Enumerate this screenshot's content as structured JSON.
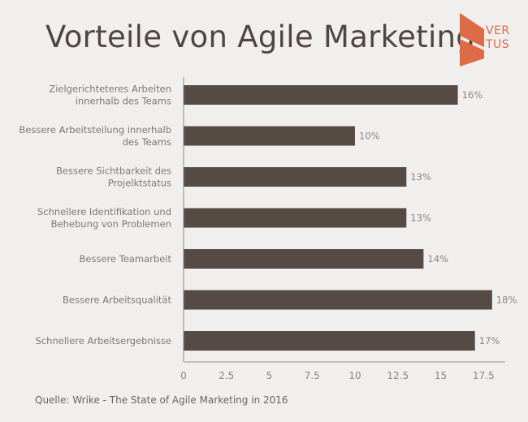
{
  "brand": {
    "logo_icon": "vertus-logo-icon",
    "logo_line1": "VER",
    "logo_line2": "TUS",
    "accent_color": "#dd6b45"
  },
  "chart_data": {
    "type": "bar",
    "orientation": "horizontal",
    "title": "Vorteile von Agile Marketing",
    "categories": [
      [
        "Zielgerichteteres Arbeiten",
        "innerhalb des Teams"
      ],
      [
        "Bessere Arbeitsteilung innerhalb",
        "des Teams"
      ],
      [
        "Bessere Sichtbarkeit des",
        "Projelktstatus"
      ],
      [
        "Schnellere Identifikation und",
        "Behebung von Problemen"
      ],
      [
        "Bessere Teamarbeit"
      ],
      [
        "Bessere Arbeitsqualität"
      ],
      [
        "Schnellere Arbeitsergebnisse"
      ]
    ],
    "values": [
      16,
      10,
      13,
      13,
      14,
      18,
      17
    ],
    "value_labels": [
      "16%",
      "10%",
      "13%",
      "13%",
      "14%",
      "18%",
      "17%"
    ],
    "xlabel": "",
    "ylabel": "",
    "xlim": [
      0,
      18.75
    ],
    "xticks": [
      0,
      2.5,
      5,
      7.5,
      10,
      12.5,
      15,
      17.5
    ],
    "xtick_labels": [
      "0",
      "2.5",
      "5",
      "7.5",
      "10",
      "12.5",
      "15",
      "17.5"
    ],
    "grid": false,
    "legend": "none",
    "bar_color": "#564a44",
    "source": "Quelle: Wrike - The State of Agile Marketing in 2016"
  }
}
